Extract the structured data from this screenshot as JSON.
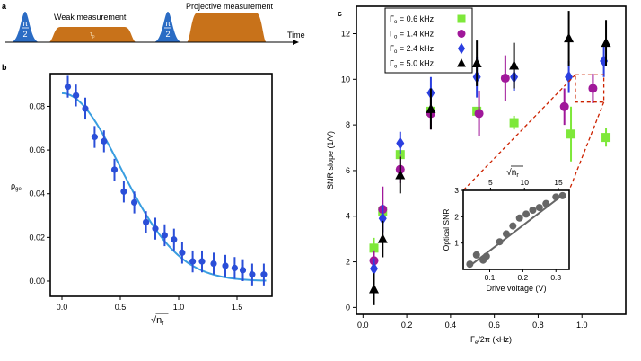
{
  "panel_labels": {
    "a": "a",
    "b": "b",
    "c": "c"
  },
  "colors": {
    "pulse_blue": "#2b6cc4",
    "pulse_orange": "#c8721a",
    "fit_line": "#3a9ee0",
    "points_b": "#2b4fd8",
    "series_06": "#7ee83a",
    "series_14": "#a0189a",
    "series_24": "#2b3fe0",
    "series_50": "#000000",
    "inset_points": "#666666",
    "dashed_box": "#cc2200"
  },
  "panel_a": {
    "pi_half_1": {
      "num": "π",
      "den": "2"
    },
    "weak_label": "Weak measurement",
    "tau_label": "τ",
    "tau_sub": "p",
    "pi_half_2": {
      "num": "π",
      "den": "2"
    },
    "proj_label": "Projective measurement",
    "time_label": "Time"
  },
  "chart_data": [
    {
      "id": "b",
      "type": "scatter",
      "title": "",
      "xlabel": "√n",
      "xlabel_sub": "r",
      "ylabel": "ρ",
      "ylabel_sub": "ge",
      "xlim": [
        -0.1,
        1.8
      ],
      "ylim": [
        -0.007,
        0.095
      ],
      "xticks": [
        0.0,
        0.5,
        1.0,
        1.5
      ],
      "xtick_labels": [
        "0.0",
        "0.5",
        "1.0",
        "1.5"
      ],
      "yticks": [
        0.0,
        0.02,
        0.04,
        0.06,
        0.08
      ],
      "ytick_labels": [
        "0.00",
        "0.02",
        "0.04",
        "0.06",
        "0.08"
      ],
      "points": [
        {
          "x": 0.05,
          "y": 0.089,
          "err": 0.005
        },
        {
          "x": 0.12,
          "y": 0.085,
          "err": 0.005
        },
        {
          "x": 0.2,
          "y": 0.079,
          "err": 0.005
        },
        {
          "x": 0.28,
          "y": 0.066,
          "err": 0.005
        },
        {
          "x": 0.36,
          "y": 0.064,
          "err": 0.005
        },
        {
          "x": 0.45,
          "y": 0.051,
          "err": 0.005
        },
        {
          "x": 0.53,
          "y": 0.041,
          "err": 0.005
        },
        {
          "x": 0.62,
          "y": 0.036,
          "err": 0.005
        },
        {
          "x": 0.72,
          "y": 0.027,
          "err": 0.005
        },
        {
          "x": 0.8,
          "y": 0.024,
          "err": 0.005
        },
        {
          "x": 0.88,
          "y": 0.021,
          "err": 0.005
        },
        {
          "x": 0.96,
          "y": 0.019,
          "err": 0.005
        },
        {
          "x": 1.03,
          "y": 0.013,
          "err": 0.005
        },
        {
          "x": 1.12,
          "y": 0.009,
          "err": 0.005
        },
        {
          "x": 1.2,
          "y": 0.009,
          "err": 0.005
        },
        {
          "x": 1.3,
          "y": 0.008,
          "err": 0.005
        },
        {
          "x": 1.4,
          "y": 0.007,
          "err": 0.005
        },
        {
          "x": 1.48,
          "y": 0.006,
          "err": 0.005
        },
        {
          "x": 1.55,
          "y": 0.005,
          "err": 0.005
        },
        {
          "x": 1.63,
          "y": 0.003,
          "err": 0.005
        },
        {
          "x": 1.73,
          "y": 0.003,
          "err": 0.005
        }
      ],
      "fit": {
        "type": "gaussian",
        "amplitude": 0.086,
        "sigma": 0.5
      }
    },
    {
      "id": "c",
      "type": "scatter",
      "title": "",
      "xlabel": "Γ",
      "xlabel_sub": "e",
      "xlabel_rest": "/2π (kHz)",
      "ylabel": "SNR slope (1/V)",
      "xlim": [
        -0.03,
        1.2
      ],
      "ylim": [
        -0.3,
        13.2
      ],
      "xticks": [
        0.0,
        0.2,
        0.4,
        0.6,
        0.8,
        1.0
      ],
      "xtick_labels": [
        "0.0",
        "0.2",
        "0.4",
        "0.6",
        "0.8",
        "1.0"
      ],
      "yticks": [
        0,
        2,
        4,
        6,
        8,
        10,
        12
      ],
      "ytick_labels": [
        "0",
        "2",
        "4",
        "6",
        "8",
        "10",
        "12"
      ],
      "legend": [
        {
          "label_pre": "Γ",
          "label_sub": "o",
          "label_rest": " = 0.6 kHz",
          "marker": "square",
          "series": "series_06"
        },
        {
          "label_pre": "Γ",
          "label_sub": "o",
          "label_rest": " = 1.4 kHz",
          "marker": "circle",
          "series": "series_14"
        },
        {
          "label_pre": "Γ",
          "label_sub": "o",
          "label_rest": " = 2.4 kHz",
          "marker": "diamond",
          "series": "series_24"
        },
        {
          "label_pre": "Γ",
          "label_sub": "o",
          "label_rest": " = 5.0 kHz",
          "marker": "triangle",
          "series": "series_50"
        }
      ],
      "series": [
        {
          "name": "Γo = 0.6 kHz",
          "color_key": "series_06",
          "marker": "square",
          "points": [
            {
              "x": 0.05,
              "y": 2.6,
              "err": 0.45
            },
            {
              "x": 0.09,
              "y": 4.2,
              "err": 0.0
            },
            {
              "x": 0.17,
              "y": 6.7,
              "err": 0.0
            },
            {
              "x": 0.31,
              "y": 8.6,
              "err": 0.0
            },
            {
              "x": 0.52,
              "y": 8.6,
              "err": 0.0
            },
            {
              "x": 0.69,
              "y": 8.1,
              "err": 0.3
            },
            {
              "x": 0.95,
              "y": 7.6,
              "err": 1.2
            },
            {
              "x": 1.11,
              "y": 7.45,
              "err": 0.4
            }
          ]
        },
        {
          "name": "Γo = 1.4 kHz",
          "color_key": "series_14",
          "marker": "circle",
          "points": [
            {
              "x": 0.05,
              "y": 2.05,
              "err": 0.45
            },
            {
              "x": 0.09,
              "y": 4.3,
              "err": 1.0
            },
            {
              "x": 0.17,
              "y": 6.05,
              "err": 0.6
            },
            {
              "x": 0.31,
              "y": 8.5,
              "err": 0.7
            },
            {
              "x": 0.53,
              "y": 8.5,
              "err": 1.0
            },
            {
              "x": 0.65,
              "y": 10.05,
              "err": 1.0
            },
            {
              "x": 0.92,
              "y": 8.8,
              "err": 0.8
            },
            {
              "x": 1.05,
              "y": 9.6,
              "err": 0.65
            }
          ]
        },
        {
          "name": "Γo = 2.4 kHz",
          "color_key": "series_24",
          "marker": "diamond",
          "points": [
            {
              "x": 0.05,
              "y": 1.7,
              "err": 0.45
            },
            {
              "x": 0.09,
              "y": 3.9,
              "err": 0.6
            },
            {
              "x": 0.17,
              "y": 7.2,
              "err": 0.5
            },
            {
              "x": 0.31,
              "y": 9.4,
              "err": 0.7
            },
            {
              "x": 0.52,
              "y": 10.1,
              "err": 0.9
            },
            {
              "x": 0.69,
              "y": 10.1,
              "err": 0.6
            },
            {
              "x": 0.94,
              "y": 10.1,
              "err": 0.7
            },
            {
              "x": 1.1,
              "y": 10.8,
              "err": 0.7
            }
          ]
        },
        {
          "name": "Γo = 5.0 kHz",
          "color_key": "series_50",
          "marker": "triangle",
          "points": [
            {
              "x": 0.05,
              "y": 0.8,
              "err": 0.7
            },
            {
              "x": 0.09,
              "y": 3.0,
              "err": 0.8
            },
            {
              "x": 0.17,
              "y": 5.8,
              "err": 0.8
            },
            {
              "x": 0.31,
              "y": 8.7,
              "err": 0.9
            },
            {
              "x": 0.52,
              "y": 10.7,
              "err": 1.0
            },
            {
              "x": 0.69,
              "y": 10.6,
              "err": 1.0
            },
            {
              "x": 0.94,
              "y": 11.8,
              "err": 1.2
            },
            {
              "x": 1.11,
              "y": 11.6,
              "err": 1.0
            }
          ]
        }
      ],
      "highlight_box": {
        "x0": 0.97,
        "x1": 1.1,
        "y0": 9.0,
        "y1": 10.2
      }
    },
    {
      "id": "c_inset",
      "type": "scatter",
      "title": "",
      "xlabel": "Drive voltage (V)",
      "ylabel": "Optical SNR",
      "top_xlabel": "√n",
      "top_xlabel_sub": "r",
      "xlim": [
        0.02,
        0.34
      ],
      "ylim": [
        0.0,
        3.0
      ],
      "xticks": [
        0.1,
        0.2,
        0.3
      ],
      "xtick_labels": [
        "0.1",
        "0.2",
        "0.3"
      ],
      "yticks": [
        1,
        2,
        3
      ],
      "ytick_labels": [
        "1",
        "2",
        "3"
      ],
      "top_xticks": [
        5,
        10,
        15
      ],
      "top_xtick_labels": [
        "5",
        "10",
        "15"
      ],
      "top_scale_voltage_per_unit": 0.0205,
      "points": [
        {
          "x": 0.04,
          "y": 0.2
        },
        {
          "x": 0.06,
          "y": 0.55
        },
        {
          "x": 0.08,
          "y": 0.35
        },
        {
          "x": 0.09,
          "y": 0.5
        },
        {
          "x": 0.13,
          "y": 1.05
        },
        {
          "x": 0.15,
          "y": 1.35
        },
        {
          "x": 0.17,
          "y": 1.65
        },
        {
          "x": 0.19,
          "y": 1.95
        },
        {
          "x": 0.21,
          "y": 2.1
        },
        {
          "x": 0.23,
          "y": 2.25
        },
        {
          "x": 0.25,
          "y": 2.35
        },
        {
          "x": 0.27,
          "y": 2.5
        },
        {
          "x": 0.3,
          "y": 2.75
        },
        {
          "x": 0.32,
          "y": 2.8
        }
      ],
      "fit": {
        "type": "linear",
        "slope": 9.6,
        "intercept": -0.25,
        "x_from": 0.035,
        "x_to": 0.32
      }
    }
  ]
}
